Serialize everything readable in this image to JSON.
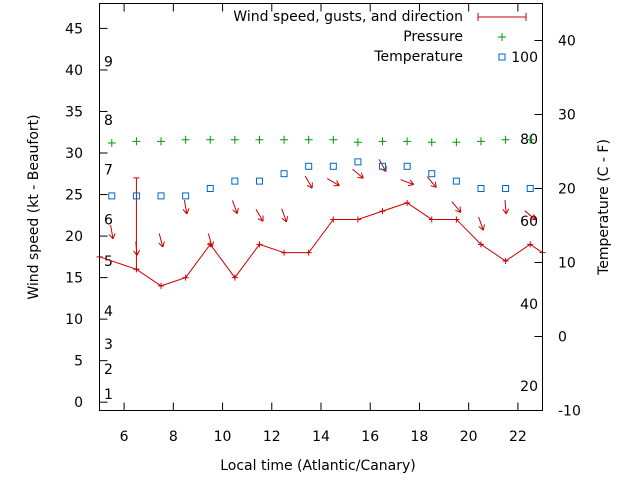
{
  "chart_data": {
    "type": "line",
    "xlabel": "Local time (Atlantic/Canary)",
    "ylabel_left": "Wind speed (kt - Beaufort)",
    "ylabel_right": "Temperature (C - F)",
    "x_range": [
      5,
      23
    ],
    "y_left_range": [
      -1,
      48
    ],
    "y_right_range": [
      -10,
      45
    ],
    "x_ticks": [
      6,
      8,
      10,
      12,
      14,
      16,
      18,
      20,
      22
    ],
    "x_tick_labels": [
      "6",
      "8",
      "10",
      "12",
      "14",
      "16",
      "18",
      "20",
      "22"
    ],
    "y_left_ticks": [
      0,
      5,
      10,
      15,
      20,
      25,
      30,
      35,
      40,
      45
    ],
    "y_left_tick_labels": [
      "0",
      "5",
      "10",
      "15",
      "20",
      "25",
      "30",
      "35",
      "40",
      "45"
    ],
    "y_right_ticks": [
      -10,
      0,
      10,
      20,
      30,
      40
    ],
    "y_right_tick_labels": [
      "-10",
      "0",
      "10",
      "20",
      "30",
      "40"
    ],
    "beaufort_scale": {
      "labels": [
        "1",
        "2",
        "3",
        "4",
        "5",
        "6",
        "7",
        "8",
        "9"
      ],
      "at_kt": [
        1,
        4,
        7,
        11,
        17,
        22,
        28,
        34,
        41
      ]
    },
    "fahrenheit_scale": {
      "labels": [
        "20",
        "40",
        "60",
        "80",
        "100"
      ],
      "at_c": [
        -6.7,
        4.4,
        15.6,
        26.7,
        37.8
      ]
    },
    "legend": {
      "position": "top-right",
      "entries": [
        "Wind speed, gusts, and direction",
        "Pressure",
        "Temperature"
      ]
    },
    "series": [
      {
        "name": "Wind speed, gusts, and direction",
        "color": "#cc0000",
        "x": [
          5,
          6.5,
          7.5,
          8.5,
          9.5,
          10.5,
          11.5,
          12.5,
          13.5,
          14.5,
          15.5,
          16.5,
          17.5,
          18.5,
          19.5,
          20.5,
          21.5,
          22.5,
          23
        ],
        "values": [
          17.5,
          16,
          14,
          15,
          19,
          15,
          19,
          18,
          18,
          22,
          22,
          23,
          24,
          22,
          22,
          19,
          17,
          19,
          18
        ],
        "gust_x": [
          6.5
        ],
        "gust_low": [
          16
        ],
        "gust_high": [
          27
        ],
        "arrow_x": [
          5.5,
          6.5,
          7.5,
          8.5,
          9.5,
          10.5,
          11.5,
          12.5,
          13.5,
          14.5,
          15.5,
          16.5,
          17.5,
          18.5,
          19.5,
          20.5,
          21.5,
          22.5
        ],
        "arrow_dir_deg": [
          350,
          355,
          345,
          350,
          345,
          340,
          330,
          340,
          330,
          300,
          310,
          330,
          290,
          320,
          320,
          340,
          355,
          310
        ]
      },
      {
        "name": "Pressure",
        "color": "#009900",
        "x": [
          5.5,
          6.5,
          7.5,
          8.5,
          9.5,
          10.5,
          11.5,
          12.5,
          13.5,
          14.5,
          15.5,
          16.5,
          17.5,
          18.5,
          19.5,
          20.5,
          21.5,
          22.5
        ],
        "values": [
          31.2,
          31.4,
          31.4,
          31.6,
          31.6,
          31.6,
          31.6,
          31.6,
          31.6,
          31.6,
          31.3,
          31.4,
          31.4,
          31.3,
          31.3,
          31.4,
          31.6,
          31.6
        ]
      },
      {
        "name": "Temperature",
        "color": "#0066cc",
        "x": [
          5.5,
          6.5,
          7.5,
          8.5,
          9.5,
          10.5,
          11.5,
          12.5,
          13.5,
          14.5,
          15.5,
          16.5,
          17.5,
          18.5,
          19.5,
          20.5,
          21.5,
          22.5
        ],
        "values": [
          19,
          19,
          19,
          19,
          20,
          21,
          21,
          22,
          23,
          23,
          23.6,
          23,
          23,
          22,
          21,
          20,
          20,
          20
        ]
      }
    ]
  }
}
